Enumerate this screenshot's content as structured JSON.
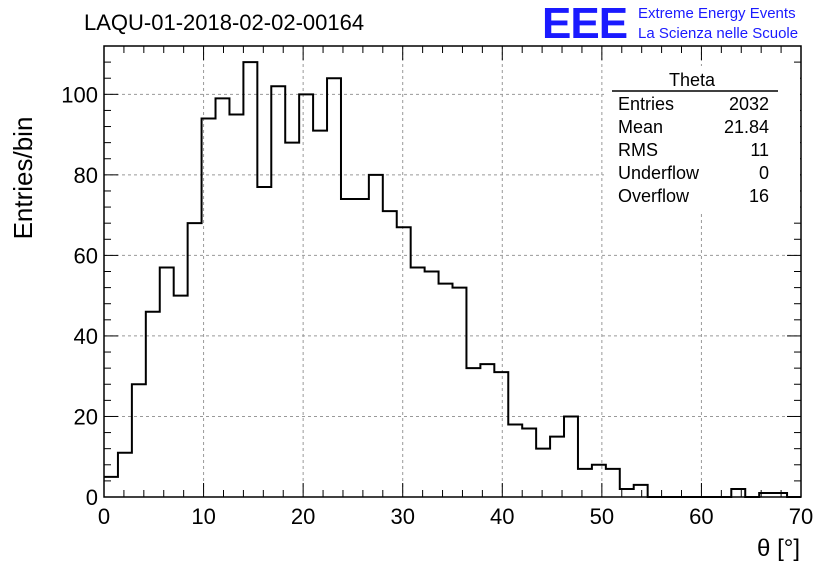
{
  "header": {
    "title": "LAQU-01-2018-02-02-00164",
    "logo": "EEE",
    "logo_line1": "Extreme Energy Events",
    "logo_line2": "La Scienza nelle Scuole"
  },
  "stats": {
    "name": "Theta",
    "rows": [
      {
        "label": "Entries",
        "value": "2032"
      },
      {
        "label": "Mean",
        "value": "21.84"
      },
      {
        "label": "RMS",
        "value": "11"
      },
      {
        "label": "Underflow",
        "value": "0"
      },
      {
        "label": "Overflow",
        "value": "16"
      }
    ]
  },
  "chart_data": {
    "type": "histogram",
    "xlabel": "θ [°]",
    "ylabel": "Entries/bin",
    "xlim": [
      0,
      70
    ],
    "ylim": [
      0,
      112
    ],
    "x_ticks": [
      0,
      10,
      20,
      30,
      40,
      50,
      60,
      70
    ],
    "y_ticks": [
      0,
      20,
      40,
      60,
      80,
      100
    ],
    "grid": true,
    "bin_width": 1.4,
    "values": [
      5,
      11,
      28,
      46,
      57,
      50,
      68,
      94,
      99,
      95,
      108,
      77,
      102,
      88,
      100,
      91,
      104,
      74,
      74,
      80,
      71,
      67,
      57,
      56,
      53,
      52,
      32,
      33,
      31,
      18,
      17,
      12,
      15,
      20,
      7,
      8,
      7,
      2,
      3,
      0,
      0,
      0,
      0,
      0,
      0,
      2,
      0,
      1,
      1,
      0
    ],
    "line_color": "#000000",
    "grid_color": "#999999"
  }
}
